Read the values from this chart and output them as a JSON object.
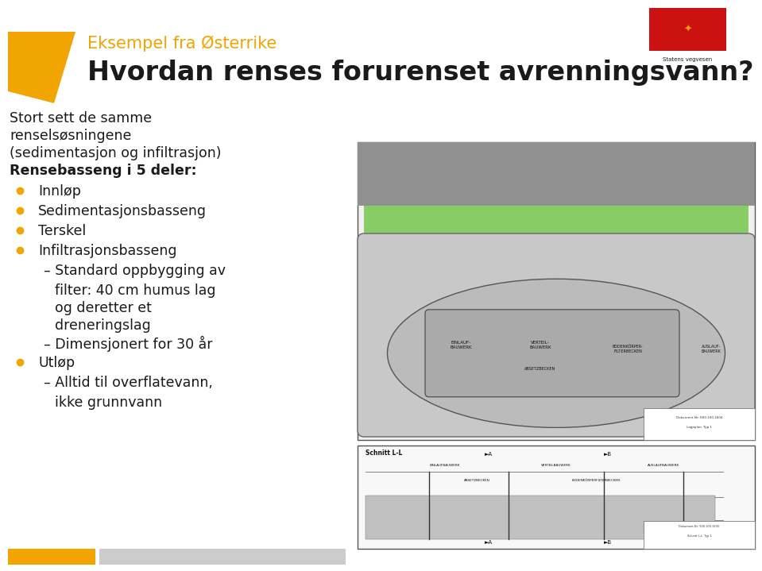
{
  "bg_color": "#ffffff",
  "orange_color": "#f0a500",
  "title_orange": "Eksempel fra Østerrike",
  "title_main": "Hvordan renses forurenset avrenningsvann?",
  "title_main_size": 24,
  "title_orange_size": 15,
  "body_text_size": 12.5,
  "bullet_color": "#f0a500",
  "body_intro": "Stort sett de samme\nrenselsøsningene\n(sedimentasjon og infiltrasjon)\nRensebasseng i 5 deler:",
  "bullet_items": [
    {
      "text": "Innløp",
      "level": 0
    },
    {
      "text": "Sedimentasjonsbasseng",
      "level": 0
    },
    {
      "text": "Terskel",
      "level": 0
    },
    {
      "text": "Infiltrasjonsbasseng",
      "level": 0
    },
    {
      "text": "Standard oppbygging av\nfilter: 40 cm humus lag\nog deretter et\ndreneringslag",
      "level": 1
    },
    {
      "text": "Dimensjonert for 30 år",
      "level": 1
    },
    {
      "text": "Utløp",
      "level": 0
    },
    {
      "text": "Alltid til overflatevann,\nikke grunnvann",
      "level": 1
    }
  ],
  "orange_color_hex": "#f0a500",
  "gray_color": "#cccccc",
  "dark_gray": "#888888",
  "green_color": "#88cc77",
  "road_gray": "#909090"
}
